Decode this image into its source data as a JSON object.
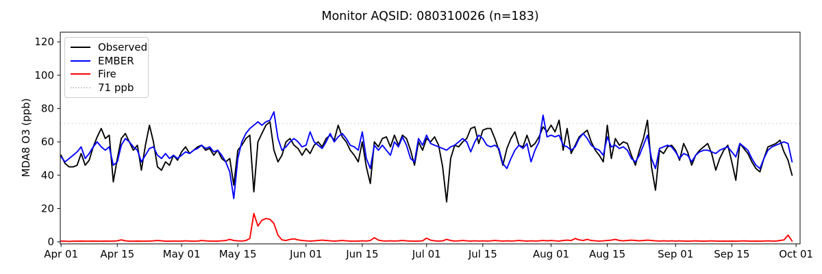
{
  "figure": {
    "background": "#ffffff",
    "frame_color": "#000000"
  },
  "chart_data": {
    "type": "line",
    "title": "Monitor AQSID: 080310026 (n=183)",
    "xlabel": "",
    "ylabel": "MDA8 O3 (ppb)",
    "n_points": 183,
    "x_description": "daily values from Apr 01 to Sep 30",
    "x_start_date": "Apr 01",
    "x_end_date": "Oct 01",
    "xtick_labels": [
      "Apr 01",
      "Apr 15",
      "May 01",
      "May 15",
      "Jun 01",
      "Jun 15",
      "Jul 01",
      "Jul 15",
      "Aug 01",
      "Aug 15",
      "Sep 01",
      "Sep 15",
      "Oct 01"
    ],
    "xtick_day_index": [
      0,
      14,
      30,
      44,
      61,
      75,
      91,
      105,
      122,
      136,
      153,
      167,
      183
    ],
    "ytick_values": [
      0,
      20,
      40,
      60,
      80,
      100,
      120
    ],
    "ylim": [
      -1.2,
      125.8
    ],
    "xlim_days": [
      -0.2,
      184
    ],
    "grid": false,
    "legend_position": "upper-left",
    "threshold_line": {
      "label": "71 ppb",
      "value": 71,
      "style": "dotted",
      "color": "#d3d3d3"
    },
    "series": [
      {
        "name": "Observed",
        "color": "#000000",
        "style": "solid",
        "values": [
          52,
          47,
          45,
          45,
          46,
          53,
          46,
          49,
          57,
          63,
          68,
          62,
          64,
          36,
          50,
          62,
          65,
          60,
          55,
          58,
          43,
          58,
          70,
          60,
          45,
          43,
          48,
          46,
          52,
          49,
          54,
          57,
          53,
          55,
          57,
          58,
          55,
          56,
          52,
          55,
          50,
          48,
          50,
          34,
          55,
          58,
          62,
          64,
          30,
          60,
          65,
          70,
          72,
          55,
          48,
          52,
          60,
          62,
          58,
          56,
          52,
          56,
          53,
          58,
          60,
          57,
          62,
          64,
          61,
          70,
          63,
          60,
          55,
          52,
          48,
          60,
          45,
          35,
          60,
          57,
          62,
          63,
          57,
          64,
          58,
          64,
          62,
          55,
          46,
          60,
          55,
          62,
          60,
          63,
          58,
          45,
          24,
          50,
          58,
          57,
          60,
          62,
          68,
          69,
          59,
          67,
          68,
          68,
          62,
          55,
          46,
          56,
          62,
          66,
          58,
          57,
          64,
          57,
          59,
          63,
          69,
          66,
          70,
          66,
          73,
          55,
          68,
          53,
          58,
          63,
          65,
          67,
          60,
          55,
          52,
          48,
          70,
          50,
          62,
          58,
          60,
          59,
          52,
          46,
          55,
          62,
          73,
          45,
          31,
          55,
          53,
          57,
          58,
          55,
          49,
          59,
          54,
          46,
          52,
          55,
          57,
          59,
          53,
          43,
          50,
          55,
          58,
          48,
          37,
          59,
          56,
          53,
          48,
          44,
          42,
          50,
          57,
          58,
          59,
          61,
          54,
          49,
          40
        ]
      },
      {
        "name": "EMBER",
        "color": "#0000ff",
        "style": "solid",
        "values": [
          51,
          48,
          50,
          52,
          54,
          57,
          50,
          53,
          57,
          60,
          57,
          55,
          57,
          46,
          48,
          58,
          62,
          60,
          57,
          55,
          48,
          52,
          56,
          57,
          52,
          50,
          53,
          50,
          52,
          50,
          52,
          54,
          53,
          55,
          56,
          58,
          56,
          57,
          54,
          55,
          52,
          48,
          42,
          26,
          50,
          60,
          65,
          68,
          70,
          72,
          70,
          72,
          73,
          78,
          62,
          55,
          57,
          60,
          62,
          60,
          57,
          58,
          66,
          60,
          58,
          56,
          60,
          65,
          60,
          63,
          65,
          62,
          58,
          57,
          55,
          66,
          50,
          44,
          58,
          55,
          58,
          55,
          52,
          60,
          57,
          63,
          58,
          50,
          48,
          62,
          58,
          64,
          59,
          58,
          57,
          56,
          55,
          57,
          58,
          60,
          62,
          60,
          54,
          60,
          64,
          62,
          58,
          57,
          58,
          56,
          47,
          44,
          50,
          55,
          58,
          56,
          59,
          48,
          55,
          60,
          76,
          63,
          64,
          63,
          64,
          58,
          57,
          55,
          57,
          62,
          65,
          62,
          58,
          56,
          55,
          52,
          63,
          57,
          58,
          56,
          57,
          55,
          50,
          48,
          52,
          58,
          64,
          50,
          44,
          56,
          57,
          58,
          57,
          54,
          50,
          53,
          52,
          48,
          52,
          54,
          55,
          55,
          54,
          53,
          55,
          56,
          57,
          54,
          51,
          59,
          57,
          55,
          50,
          46,
          44,
          50,
          55,
          57,
          58,
          59,
          60,
          59,
          48
        ]
      },
      {
        "name": "Fire",
        "color": "#ff0000",
        "style": "solid",
        "values": [
          0.4,
          0.4,
          0.3,
          0.4,
          0.4,
          0.5,
          0.4,
          0.4,
          0.5,
          0.4,
          0.4,
          0.5,
          0.4,
          0.5,
          0.6,
          1.2,
          0.6,
          0.4,
          0.4,
          0.5,
          0.4,
          0.4,
          0.5,
          0.6,
          0.8,
          0.6,
          0.4,
          0.4,
          0.5,
          0.4,
          0.5,
          0.6,
          0.5,
          0.4,
          0.5,
          0.8,
          0.6,
          0.5,
          0.4,
          0.5,
          0.6,
          0.8,
          1.5,
          0.8,
          0.6,
          0.5,
          0.8,
          2.0,
          17.0,
          9.5,
          13.0,
          14.0,
          13.5,
          11.0,
          4.0,
          1.2,
          0.8,
          1.5,
          1.8,
          1.2,
          0.8,
          0.6,
          0.5,
          0.6,
          0.8,
          1.0,
          0.8,
          0.6,
          0.5,
          0.6,
          0.8,
          0.6,
          0.5,
          0.4,
          0.5,
          0.6,
          0.5,
          0.8,
          2.5,
          1.0,
          0.6,
          0.5,
          0.6,
          0.5,
          0.6,
          0.8,
          0.6,
          0.5,
          0.4,
          0.5,
          0.6,
          2.2,
          1.0,
          0.6,
          0.5,
          0.6,
          1.5,
          0.8,
          0.5,
          0.6,
          0.8,
          0.6,
          0.5,
          0.6,
          0.5,
          0.6,
          0.5,
          0.6,
          0.8,
          0.6,
          0.5,
          0.6,
          0.5,
          0.6,
          0.8,
          0.6,
          0.5,
          0.6,
          0.5,
          0.6,
          0.8,
          0.6,
          0.8,
          0.6,
          0.5,
          0.8,
          1.0,
          0.8,
          2.0,
          1.2,
          0.8,
          1.5,
          0.8,
          0.6,
          0.5,
          0.6,
          0.8,
          1.0,
          1.5,
          0.8,
          0.6,
          0.8,
          1.0,
          0.8,
          0.6,
          0.8,
          1.0,
          0.8,
          0.6,
          0.5,
          0.6,
          0.5,
          0.6,
          0.5,
          0.6,
          0.5,
          0.4,
          0.5,
          0.6,
          0.5,
          0.4,
          0.5,
          0.6,
          0.5,
          0.4,
          0.5,
          0.4,
          0.5,
          0.4,
          0.5,
          0.6,
          0.5,
          0.4,
          0.5,
          0.4,
          0.5,
          0.6,
          0.5,
          0.5,
          0.8,
          1.2,
          4.0,
          0.5
        ]
      }
    ]
  },
  "legend": {
    "entries": [
      {
        "label": "Observed"
      },
      {
        "label": "EMBER"
      },
      {
        "label": "Fire"
      },
      {
        "label": "71 ppb"
      }
    ]
  }
}
